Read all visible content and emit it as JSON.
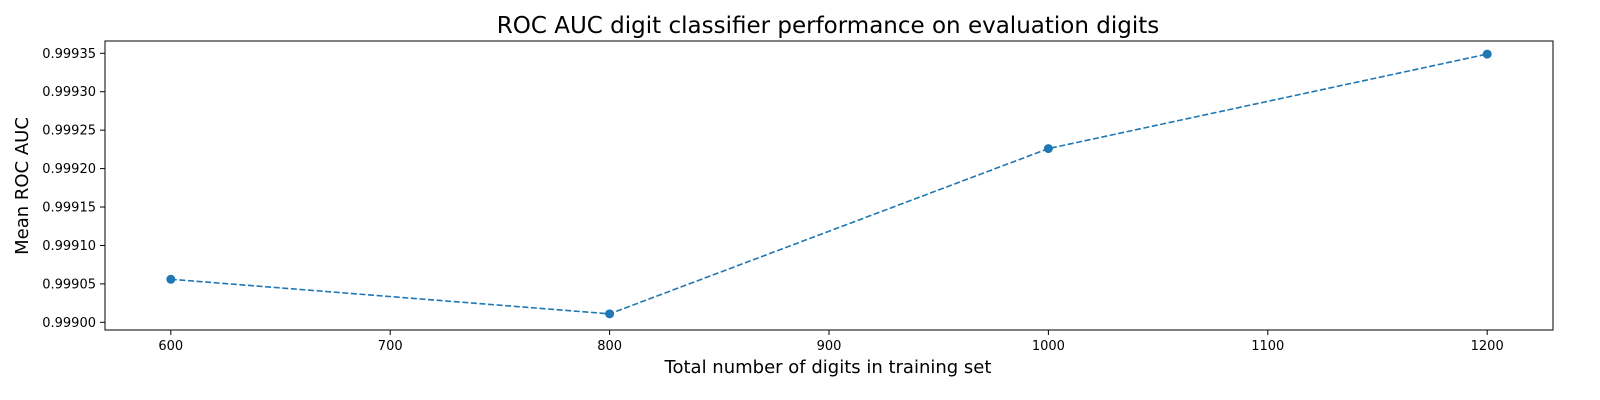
{
  "chart_data": {
    "type": "line",
    "title": "ROC AUC digit classifier performance on evaluation digits",
    "xlabel": "Total number of digits in training set",
    "ylabel": "Mean ROC AUC",
    "series": [
      {
        "x": [
          600,
          800,
          1000,
          1200
        ],
        "values": [
          0.999056,
          0.999011,
          0.999226,
          0.999349
        ],
        "color": "#1f77b4",
        "line_style": "dashed",
        "marker": "circle"
      }
    ],
    "xlim": [
      570,
      1230
    ],
    "ylim": [
      0.99899,
      0.999366
    ],
    "xticks": [
      600,
      700,
      800,
      900,
      1000,
      1100,
      1200
    ],
    "xtick_labels": [
      "600",
      "700",
      "800",
      "900",
      "1000",
      "1100",
      "1200"
    ],
    "yticks": [
      0.999,
      0.99905,
      0.9991,
      0.99915,
      0.9992,
      0.99925,
      0.9993,
      0.99935
    ],
    "ytick_labels": [
      "0.99900",
      "0.99905",
      "0.99910",
      "0.99915",
      "0.99920",
      "0.99925",
      "0.99930",
      "0.99935"
    ],
    "grid": false,
    "legend": "none"
  }
}
